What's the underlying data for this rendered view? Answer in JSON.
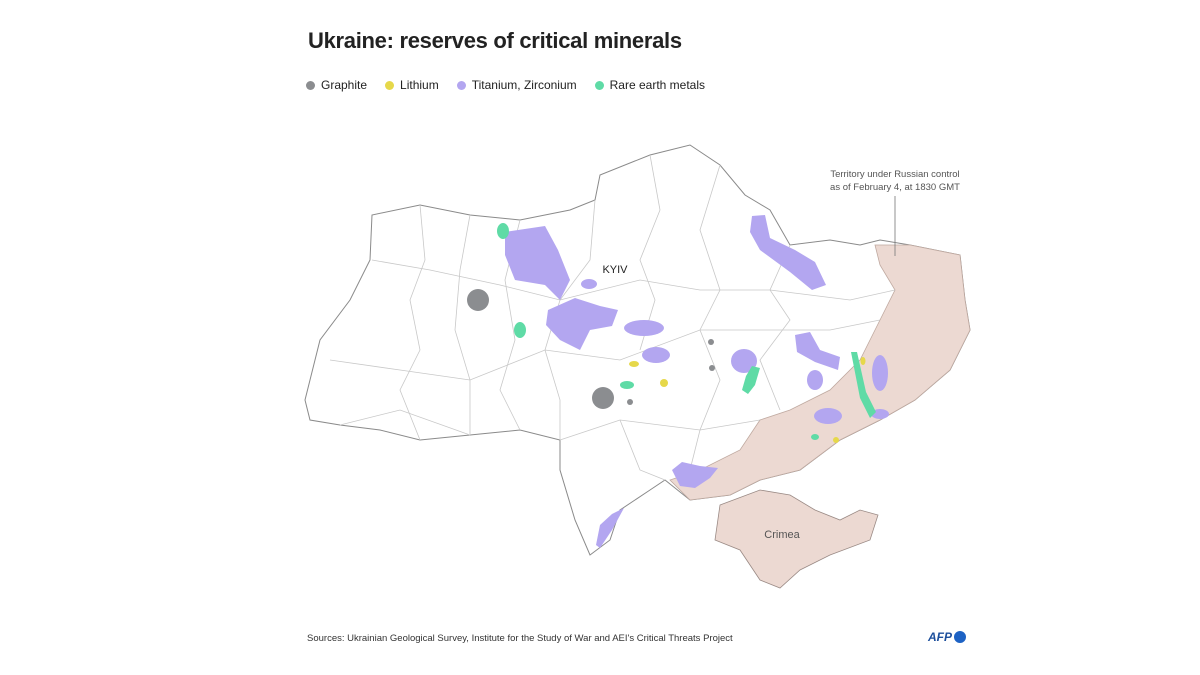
{
  "title": "Ukraine: reserves of critical minerals",
  "legend": [
    {
      "label": "Graphite",
      "color": "#8b8d90"
    },
    {
      "label": "Lithium",
      "color": "#e6d84a"
    },
    {
      "label": "Titanium, Zirconium",
      "color": "#b3a6f0"
    },
    {
      "label": "Rare earth metals",
      "color": "#5fdba6"
    }
  ],
  "annotation": [
    "Territory under Russian control",
    "as of February 4, at 1830 GMT"
  ],
  "labels": {
    "capital": "KYIV",
    "peninsula": "Crimea"
  },
  "source": "Sources: Ukrainian Geological Survey, Institute for the Study of War and AEI's Critical Threats Project",
  "logo": "AFP"
}
